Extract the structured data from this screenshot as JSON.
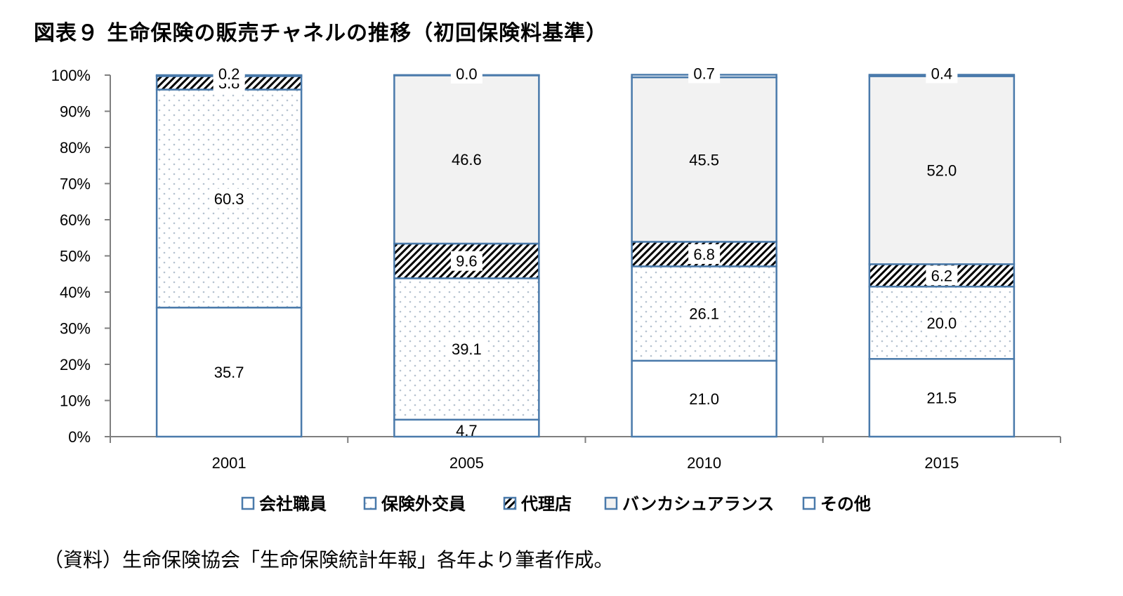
{
  "title": "図表９ 生命保険の販売チャネルの推移（初回保険料基準）",
  "source": "（資料）生命保険協会「生命保険統計年報」各年より筆者作成。",
  "chart_data": {
    "type": "bar",
    "stacked": true,
    "categories": [
      "2001",
      "2005",
      "2010",
      "2015"
    ],
    "series": [
      {
        "name": "会社職員",
        "values": [
          35.7,
          4.7,
          21.0,
          21.5
        ],
        "labels": [
          "35.7",
          "4.7",
          "21.0",
          "21.5"
        ],
        "fill": "white",
        "color": "#ffffff"
      },
      {
        "name": "保険外交員",
        "values": [
          60.3,
          39.1,
          26.1,
          20.0
        ],
        "labels": [
          "60.3",
          "39.1",
          "26.1",
          "20.0"
        ],
        "fill": "dots",
        "color": "#e8eef4"
      },
      {
        "name": "代理店",
        "values": [
          3.8,
          9.6,
          6.8,
          6.2
        ],
        "labels": [
          "3.8",
          "9.6",
          "6.8",
          "6.2"
        ],
        "fill": "hatch",
        "color": "#000000"
      },
      {
        "name": "バンカシュアランス",
        "values": [
          0.0,
          46.6,
          45.5,
          52.0
        ],
        "labels": [
          "",
          "46.6",
          "45.5",
          "52.0"
        ],
        "fill": "gray",
        "color": "#f2f2f2"
      },
      {
        "name": "その他",
        "values": [
          0.2,
          0.0,
          0.7,
          0.4
        ],
        "labels": [
          "0.2",
          "0.0",
          "0.7",
          "0.4"
        ],
        "fill": "white",
        "color": "#ffffff"
      }
    ],
    "ylim": [
      0,
      100
    ],
    "yticks": [
      "0%",
      "10%",
      "20%",
      "30%",
      "40%",
      "50%",
      "60%",
      "70%",
      "80%",
      "90%",
      "100%"
    ],
    "xlabel": "",
    "ylabel": "",
    "legend": "bottom",
    "grid": false,
    "border_color": "#4a7aab"
  }
}
